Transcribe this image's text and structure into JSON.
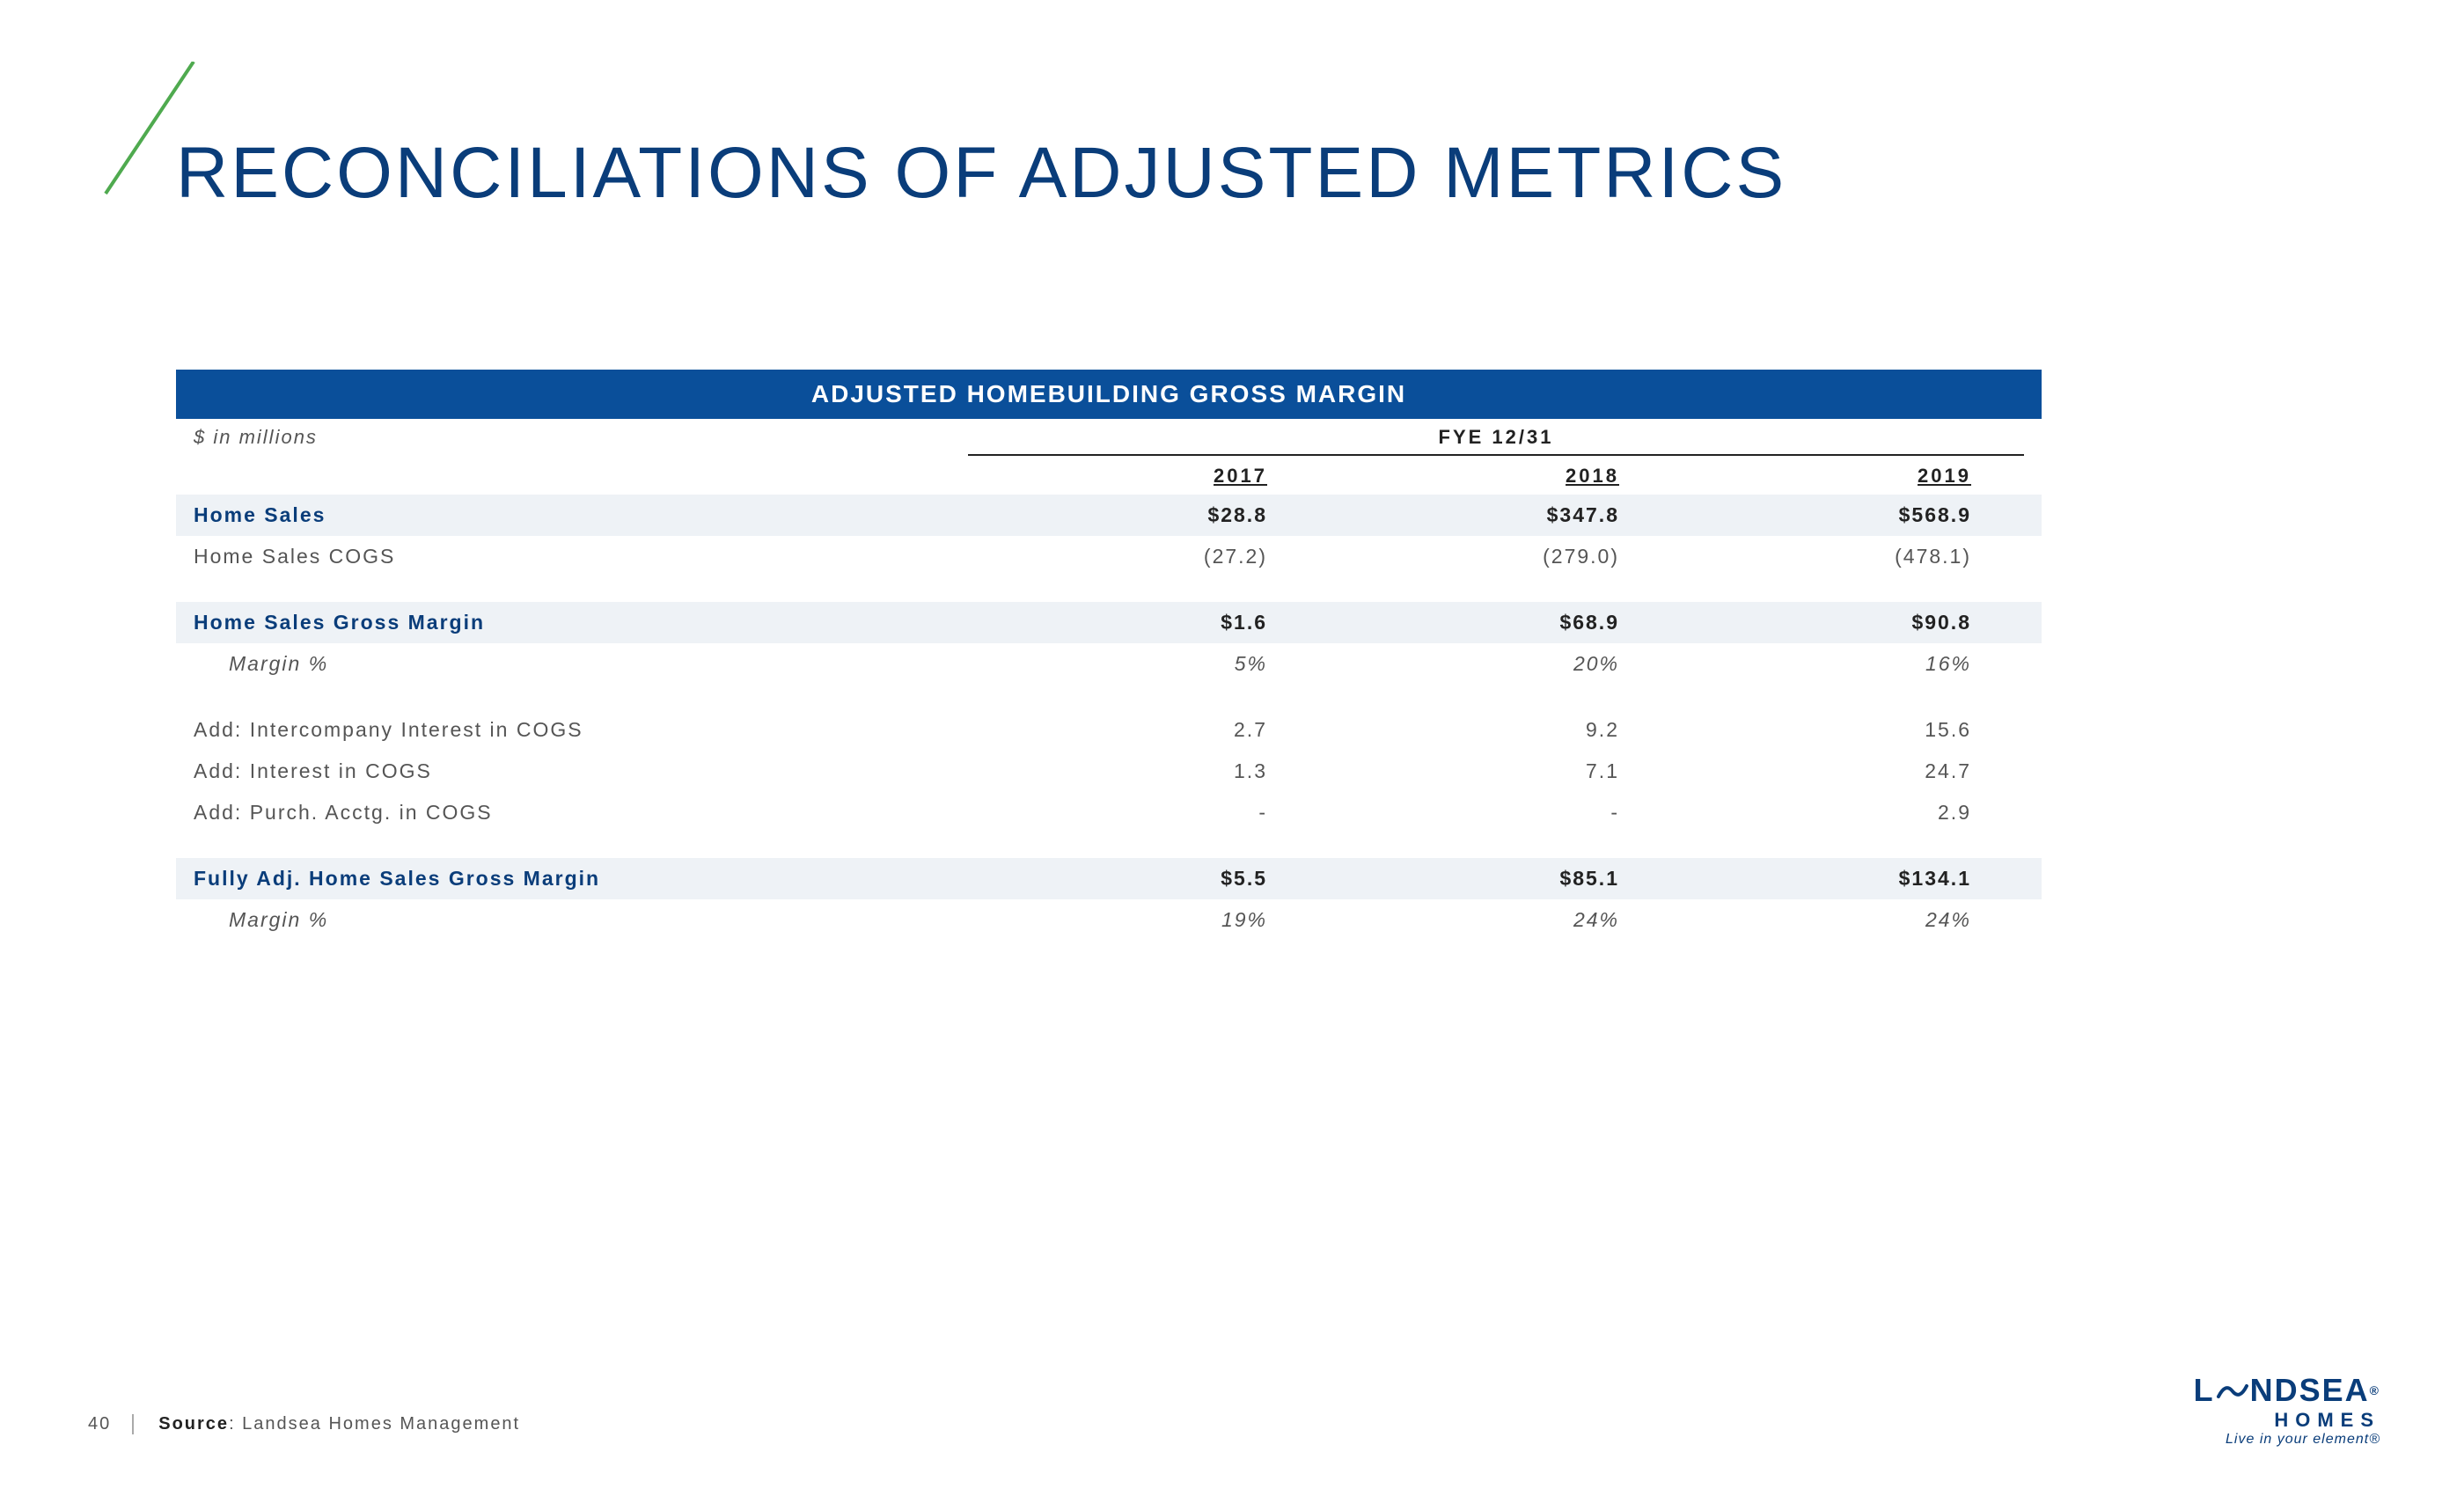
{
  "page": {
    "title": "RECONCILIATIONS OF ADJUSTED METRICS",
    "number": "40",
    "source_label": "Source",
    "source_text": ": Landsea Homes Management"
  },
  "colors": {
    "brand_primary": "#0a3d7a",
    "banner_bg": "#0a4f9a",
    "banner_text": "#ffffff",
    "highlight_row_bg": "#eef2f6",
    "body_text": "#555555",
    "slash_stroke": "#4faa4f",
    "page_bg": "#ffffff"
  },
  "table": {
    "type": "table",
    "banner": "ADJUSTED HOMEBUILDING GROSS MARGIN",
    "units": "$ in millions",
    "period_label": "FYE 12/31",
    "columns": [
      "2017",
      "2018",
      "2019"
    ],
    "column_align": [
      "right",
      "right",
      "right"
    ],
    "label_fontsize": 23,
    "banner_fontsize": 28,
    "rows": [
      {
        "label": "Home Sales",
        "values": [
          "$28.8",
          "$347.8",
          "$568.9"
        ],
        "style": "highlight"
      },
      {
        "label": "Home Sales COGS",
        "values": [
          "(27.2)",
          "(279.0)",
          "(478.1)"
        ],
        "style": "normal"
      },
      {
        "style": "spacer"
      },
      {
        "label": "Home Sales Gross Margin",
        "values": [
          "$1.6",
          "$68.9",
          "$90.8"
        ],
        "style": "highlight"
      },
      {
        "label": "Margin %",
        "values": [
          "5%",
          "20%",
          "16%"
        ],
        "style": "sub"
      },
      {
        "style": "spacer"
      },
      {
        "label": "Add: Intercompany Interest in COGS",
        "values": [
          "2.7",
          "9.2",
          "15.6"
        ],
        "style": "normal"
      },
      {
        "label": "Add: Interest in COGS",
        "values": [
          "1.3",
          "7.1",
          "24.7"
        ],
        "style": "normal"
      },
      {
        "label": "Add: Purch. Acctg. in COGS",
        "values": [
          "-",
          "-",
          "2.9"
        ],
        "style": "normal"
      },
      {
        "style": "spacer"
      },
      {
        "label": "Fully Adj. Home Sales Gross Margin",
        "values": [
          "$5.5",
          "$85.1",
          "$134.1"
        ],
        "style": "highlight"
      },
      {
        "label": "Margin %",
        "values": [
          "19%",
          "24%",
          "24%"
        ],
        "style": "sub"
      }
    ]
  },
  "logo": {
    "main_left": "L",
    "main_right": "NDSEA",
    "registered": "®",
    "sub": "HOMES",
    "tagline": "Live in your element®"
  }
}
